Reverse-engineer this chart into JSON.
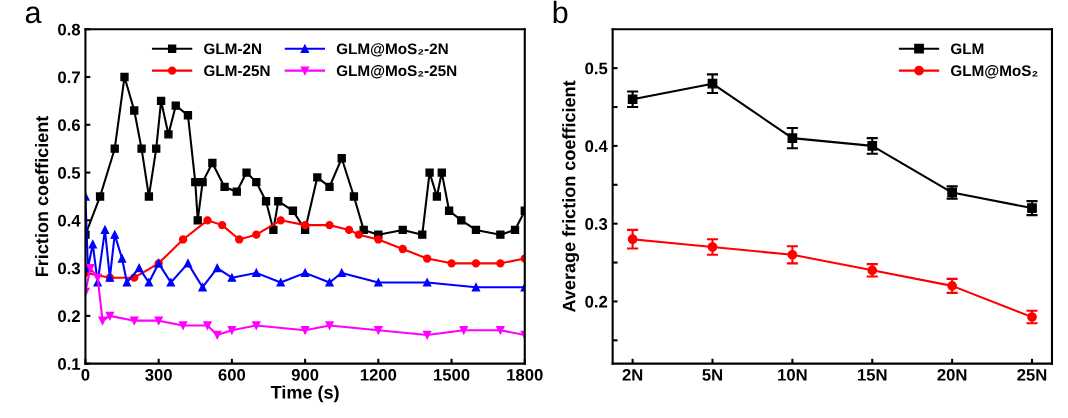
{
  "chart_data": [
    {
      "type": "line",
      "title": "a",
      "xlabel": "Time (s)",
      "ylabel": "Friction coefficient",
      "xlim": [
        0,
        1800
      ],
      "ylim": [
        0.1,
        0.8
      ],
      "xticks": [
        0,
        300,
        600,
        900,
        1200,
        1500,
        1800
      ],
      "yticks": [
        0.1,
        0.2,
        0.3,
        0.4,
        0.5,
        0.6,
        0.7,
        0.8
      ],
      "legend": "top",
      "grid": false,
      "series": [
        {
          "name": "GLM-2N",
          "color": "#000000",
          "marker": "square",
          "x": [
            0,
            60,
            120,
            160,
            200,
            230,
            260,
            290,
            310,
            340,
            370,
            420,
            450,
            460,
            480,
            520,
            570,
            620,
            660,
            700,
            740,
            770,
            790,
            850,
            900,
            950,
            1000,
            1050,
            1100,
            1140,
            1200,
            1300,
            1380,
            1410,
            1440,
            1460,
            1490,
            1540,
            1600,
            1700,
            1760,
            1800
          ],
          "values": [
            0.37,
            0.45,
            0.55,
            0.7,
            0.63,
            0.55,
            0.45,
            0.55,
            0.65,
            0.58,
            0.64,
            0.62,
            0.48,
            0.4,
            0.48,
            0.52,
            0.47,
            0.46,
            0.5,
            0.48,
            0.44,
            0.38,
            0.44,
            0.42,
            0.38,
            0.49,
            0.47,
            0.53,
            0.45,
            0.38,
            0.37,
            0.38,
            0.37,
            0.5,
            0.45,
            0.5,
            0.42,
            0.4,
            0.38,
            0.37,
            0.38,
            0.42
          ]
        },
        {
          "name": "GLM-25N",
          "color": "#ff0000",
          "marker": "circle",
          "x": [
            0,
            100,
            200,
            300,
            400,
            500,
            560,
            630,
            700,
            800,
            900,
            1000,
            1080,
            1120,
            1200,
            1300,
            1400,
            1500,
            1600,
            1700,
            1800
          ],
          "values": [
            0.29,
            0.28,
            0.28,
            0.31,
            0.36,
            0.4,
            0.39,
            0.36,
            0.37,
            0.4,
            0.39,
            0.39,
            0.38,
            0.37,
            0.36,
            0.34,
            0.32,
            0.31,
            0.31,
            0.31,
            0.32
          ]
        },
        {
          "name": "GLM@MoS₂-2N",
          "color": "#0000ff",
          "marker": "triangle",
          "x": [
            0,
            10,
            30,
            50,
            80,
            100,
            120,
            150,
            170,
            220,
            260,
            300,
            350,
            420,
            480,
            540,
            600,
            700,
            800,
            900,
            1000,
            1050,
            1200,
            1400,
            1600,
            1800
          ],
          "values": [
            0.45,
            0.3,
            0.35,
            0.27,
            0.38,
            0.28,
            0.37,
            0.32,
            0.27,
            0.3,
            0.27,
            0.31,
            0.27,
            0.31,
            0.26,
            0.3,
            0.28,
            0.29,
            0.27,
            0.29,
            0.27,
            0.29,
            0.27,
            0.27,
            0.26,
            0.26
          ]
        },
        {
          "name": "GLM@MoS₂-25N",
          "color": "#ff00ff",
          "marker": "triangle_down",
          "x": [
            0,
            20,
            50,
            70,
            100,
            200,
            300,
            400,
            500,
            540,
            600,
            700,
            900,
            1000,
            1200,
            1400,
            1550,
            1700,
            1800
          ],
          "values": [
            0.25,
            0.3,
            0.28,
            0.19,
            0.2,
            0.19,
            0.19,
            0.18,
            0.18,
            0.16,
            0.17,
            0.18,
            0.17,
            0.18,
            0.17,
            0.16,
            0.17,
            0.17,
            0.16
          ]
        }
      ]
    },
    {
      "type": "line",
      "title": "b",
      "ylabel": "Average friction coefficient",
      "categories": [
        "2N",
        "5N",
        "10N",
        "15N",
        "20N",
        "25N"
      ],
      "ylim": [
        0.12,
        0.55
      ],
      "yticks": [
        {
          "value": 0.15,
          "label": null
        },
        0.2,
        {
          "value": 0.25,
          "label": null
        },
        0.3,
        {
          "value": 0.35,
          "label": null
        },
        0.4,
        {
          "value": 0.45,
          "label": null
        },
        0.5
      ],
      "legend": "top right",
      "grid": false,
      "series": [
        {
          "name": "GLM",
          "color": "#000000",
          "marker": "square",
          "values": [
            0.46,
            0.48,
            0.41,
            0.4,
            0.34,
            0.32
          ],
          "errors": [
            0.01,
            0.012,
            0.013,
            0.01,
            0.008,
            0.009
          ]
        },
        {
          "name": "GLM@MoS₂",
          "color": "#ff0000",
          "marker": "circle",
          "values": [
            0.28,
            0.27,
            0.26,
            0.24,
            0.22,
            0.18
          ],
          "errors": [
            0.012,
            0.01,
            0.011,
            0.008,
            0.009,
            0.008
          ]
        }
      ]
    }
  ]
}
